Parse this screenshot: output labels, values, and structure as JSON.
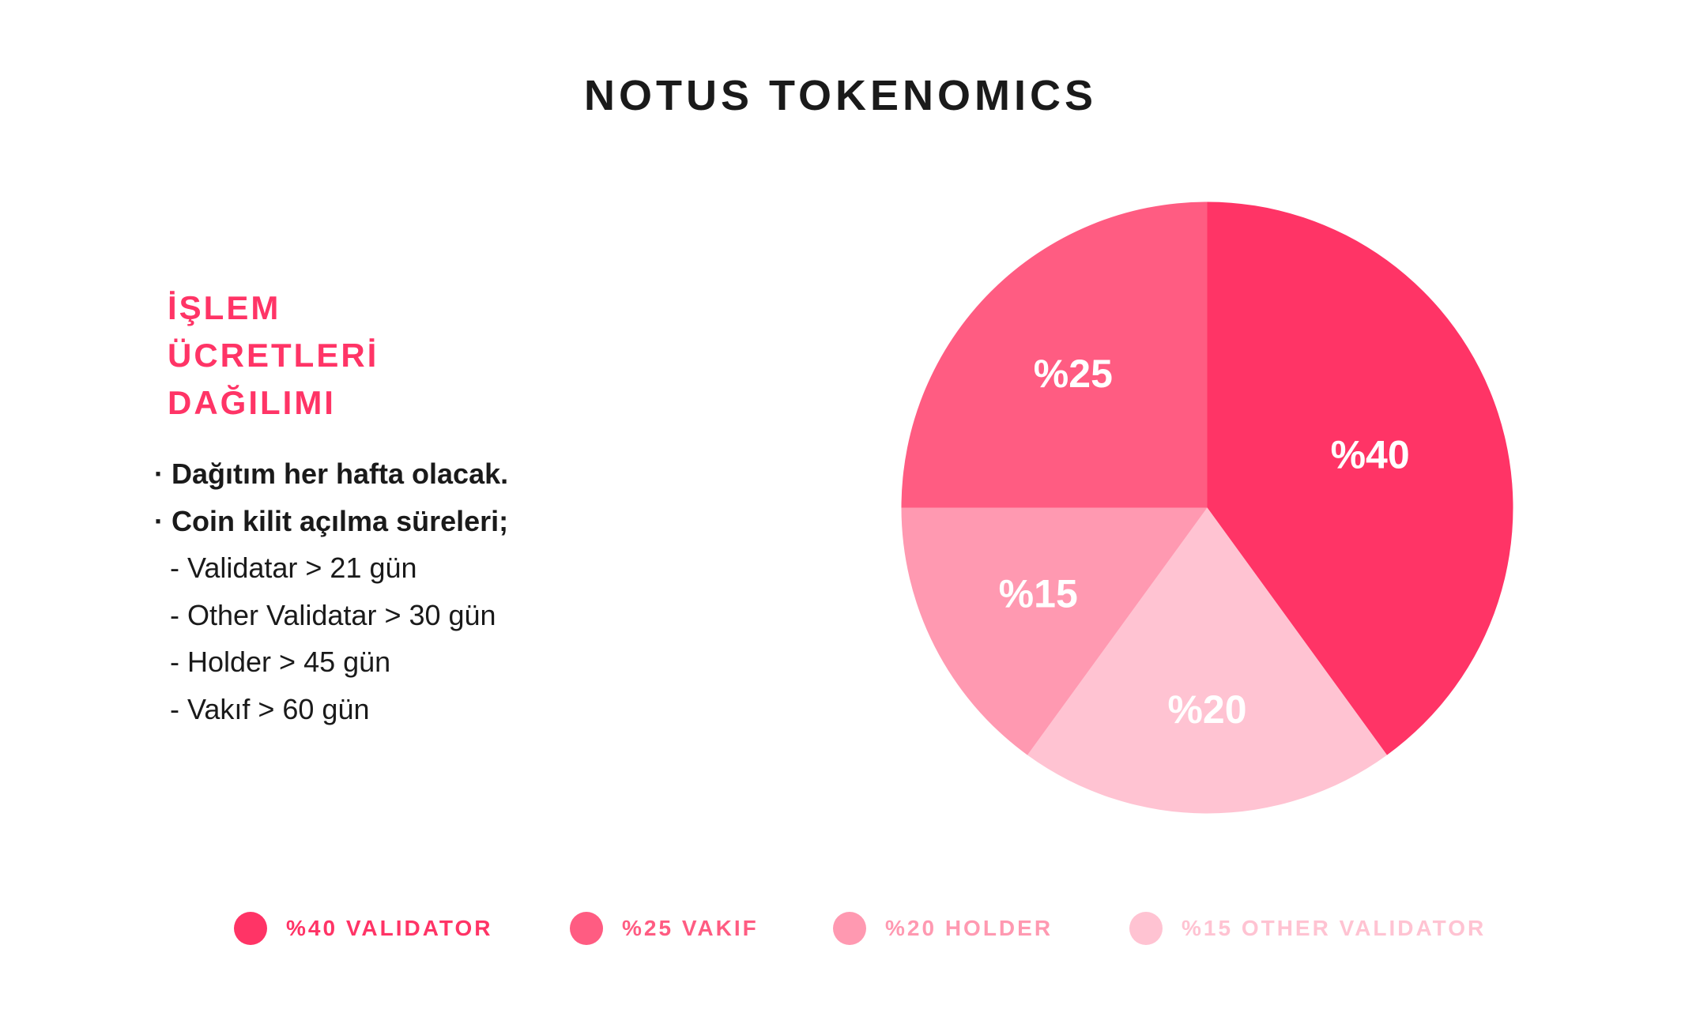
{
  "title": "NOTUS TOKENOMICS",
  "section": {
    "heading_lines": [
      "İŞLEM",
      "ÜCRETLERİ",
      "DAĞILIMI"
    ],
    "notes": [
      {
        "text": "· Dağıtım her hafta olacak.",
        "kind": "bullet"
      },
      {
        "text": "· Coin kilit açılma süreleri;",
        "kind": "bullet"
      },
      {
        "text": "- Validatar > 21 gün",
        "kind": "sub"
      },
      {
        "text": "- Other Validatar > 30 gün",
        "kind": "sub"
      },
      {
        "text": "- Holder > 45 gün",
        "kind": "sub"
      },
      {
        "text": "- Vakıf > 60 gün",
        "kind": "sub"
      }
    ]
  },
  "colors": {
    "heading": "#ff3466",
    "text": "#1a1a1a",
    "label_on_slice": "#ffffff"
  },
  "legend": [
    {
      "label": "%40 VALIDATOR",
      "color": "#ff3466",
      "text_color": "#ff3466"
    },
    {
      "label": "%25 VAKIF",
      "color": "#ff5c82",
      "text_color": "#ff5c82"
    },
    {
      "label": "%20 HOLDER",
      "color": "#ff99b1",
      "text_color": "#ff99b1"
    },
    {
      "label": "%15 OTHER VALIDATOR",
      "color": "#ffc3d2",
      "text_color": "#ffc3d2"
    }
  ],
  "chart_data": {
    "type": "pie",
    "title": "NOTUS TOKENOMICS",
    "slices": [
      {
        "name": "VALIDATOR",
        "value": 40,
        "label": "%40",
        "color": "#ff3466"
      },
      {
        "name": "HOLDER",
        "value": 20,
        "label": "%20",
        "color": "#ffc3d2"
      },
      {
        "name": "OTHER VALIDATOR",
        "value": 15,
        "label": "%15",
        "color": "#ff99b1"
      },
      {
        "name": "VAKIF",
        "value": 25,
        "label": "%25",
        "color": "#ff5c82"
      }
    ],
    "start_angle_deg": 0,
    "direction": "clockwise",
    "legend_position": "bottom"
  }
}
